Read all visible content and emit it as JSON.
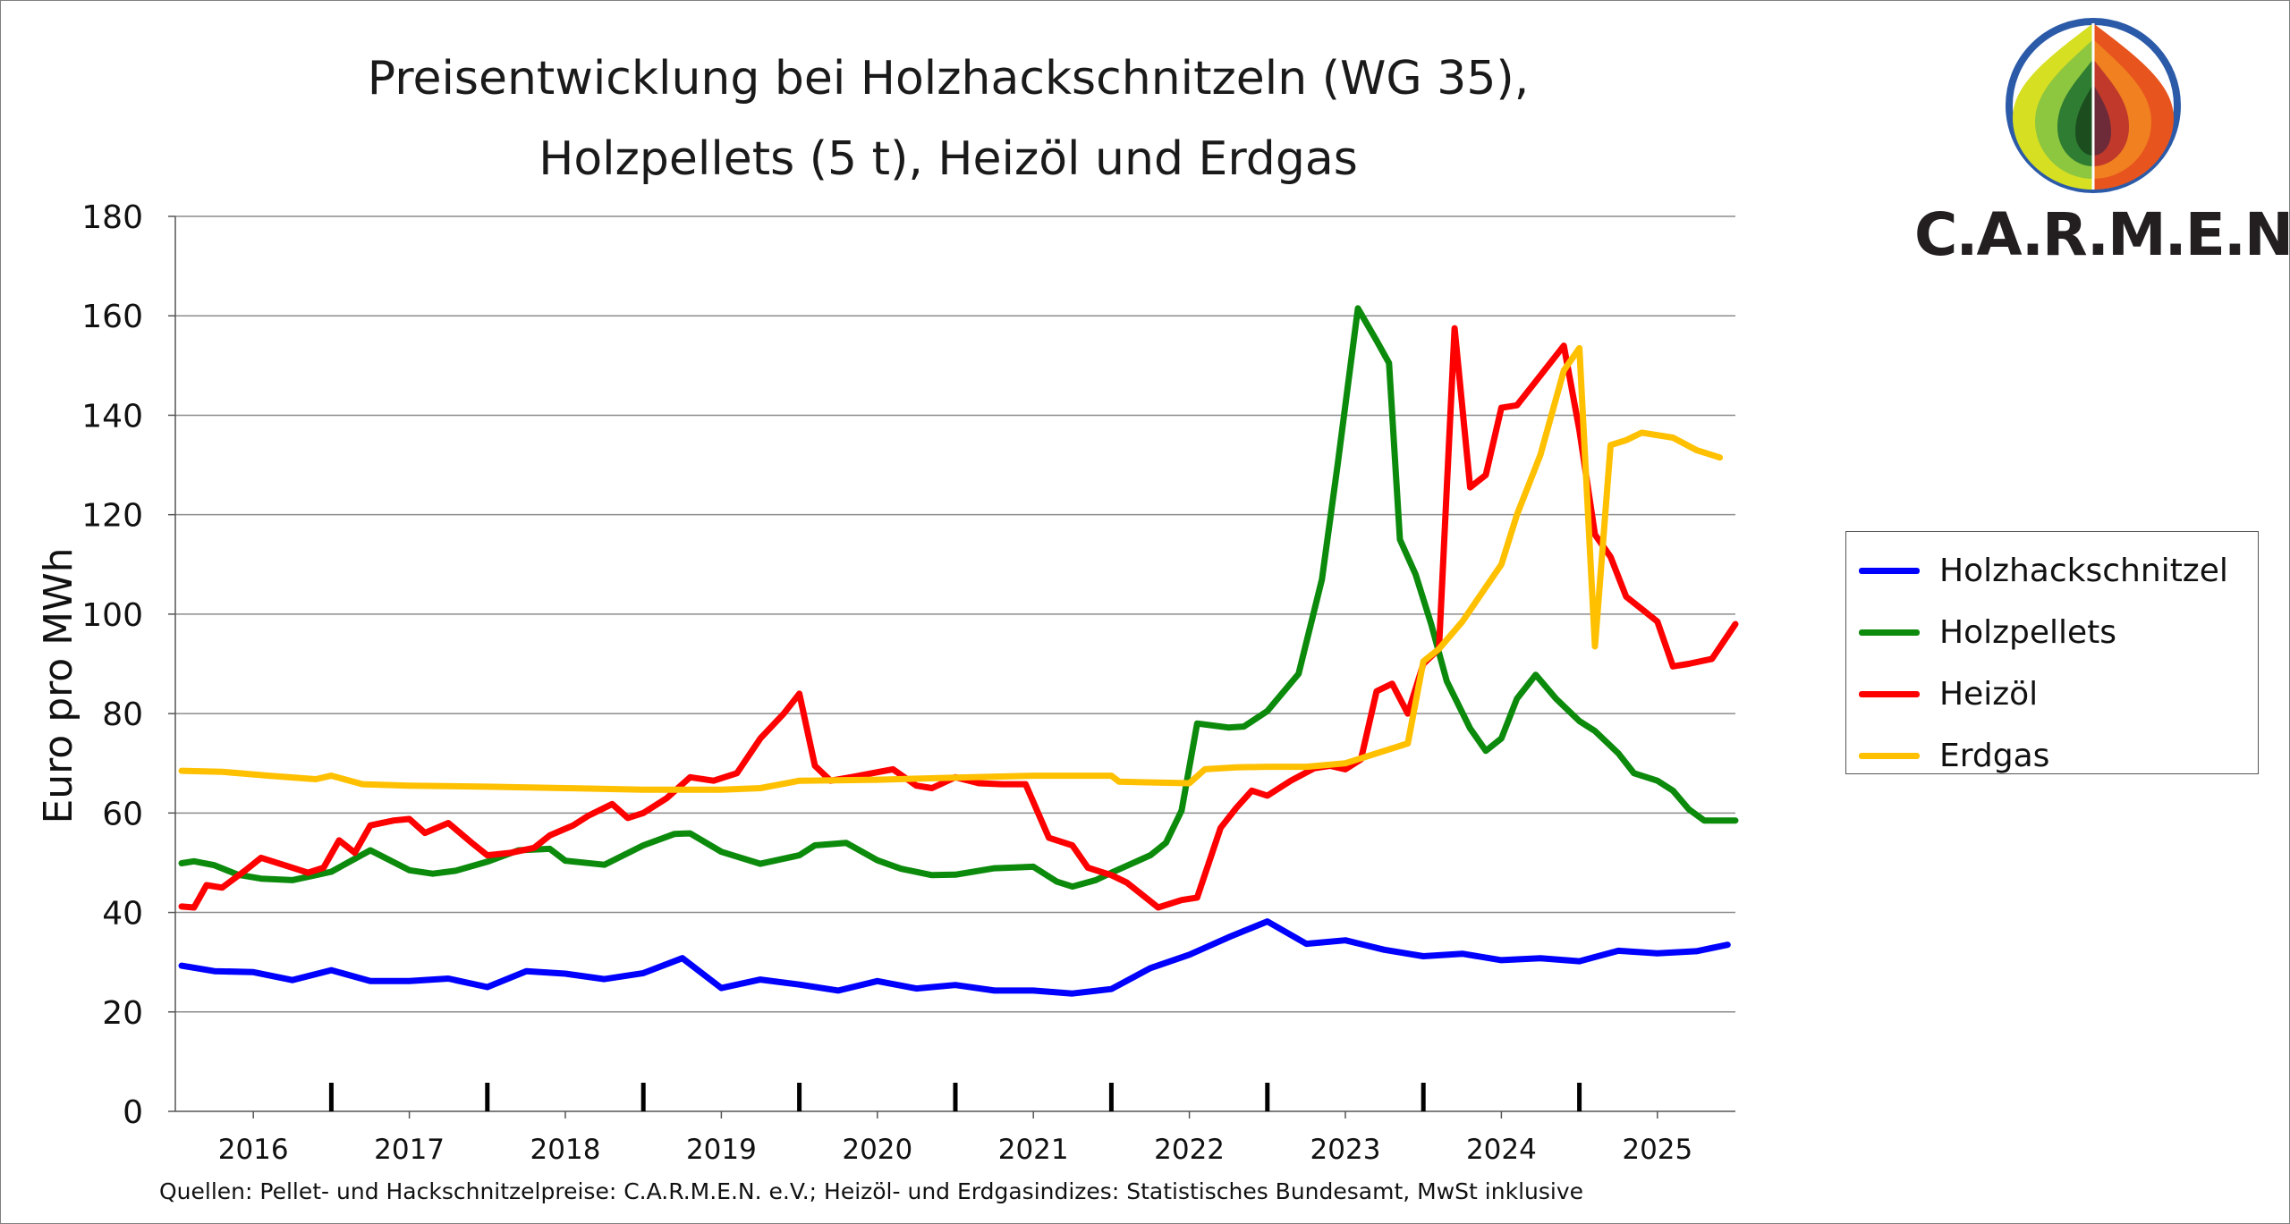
{
  "chart_data": {
    "type": "line",
    "title_line1": "Preisentwicklung bei Holzhackschnitzeln (WG 35),",
    "title_line2": "Holzpellets (5 t), Heizöl und Erdgas",
    "ylabel": "Euro pro MWh",
    "xlabel": "",
    "ylim": [
      0,
      180
    ],
    "yticks": [
      0,
      20,
      40,
      60,
      80,
      100,
      120,
      140,
      160,
      180
    ],
    "xlim": [
      2016.0,
      2026.0
    ],
    "categories": [
      "2016",
      "2017",
      "2018",
      "2019",
      "2020",
      "2021",
      "2022",
      "2023",
      "2024",
      "2025"
    ],
    "year_dividers": [
      2017,
      2018,
      2019,
      2020,
      2021,
      2022,
      2023,
      2024,
      2025
    ],
    "grid": true,
    "legend_position": "right",
    "series": [
      {
        "name": "Holzhackschnitzel",
        "color": "#0000ff",
        "points": [
          [
            2016.04,
            29.3
          ],
          [
            2016.25,
            28.2
          ],
          [
            2016.5,
            28.0
          ],
          [
            2016.75,
            26.4
          ],
          [
            2017.0,
            28.4
          ],
          [
            2017.25,
            26.2
          ],
          [
            2017.5,
            26.2
          ],
          [
            2017.75,
            26.7
          ],
          [
            2018.0,
            25.0
          ],
          [
            2018.25,
            28.2
          ],
          [
            2018.5,
            27.7
          ],
          [
            2018.75,
            26.6
          ],
          [
            2019.0,
            27.8
          ],
          [
            2019.25,
            30.8
          ],
          [
            2019.5,
            24.8
          ],
          [
            2019.75,
            26.5
          ],
          [
            2020.0,
            25.5
          ],
          [
            2020.25,
            24.3
          ],
          [
            2020.5,
            26.2
          ],
          [
            2020.75,
            24.7
          ],
          [
            2021.0,
            25.4
          ],
          [
            2021.25,
            24.3
          ],
          [
            2021.5,
            24.3
          ],
          [
            2021.75,
            23.7
          ],
          [
            2022.0,
            24.6
          ],
          [
            2022.25,
            28.8
          ],
          [
            2022.5,
            31.5
          ],
          [
            2022.75,
            35.0
          ],
          [
            2023.0,
            38.2
          ],
          [
            2023.25,
            33.7
          ],
          [
            2023.5,
            34.4
          ],
          [
            2023.75,
            32.5
          ],
          [
            2024.0,
            31.2
          ],
          [
            2024.25,
            31.7
          ],
          [
            2024.5,
            30.4
          ],
          [
            2024.75,
            30.8
          ],
          [
            2025.0,
            30.2
          ],
          [
            2025.25,
            32.3
          ],
          [
            2025.5,
            31.8
          ],
          [
            2025.75,
            32.2
          ],
          [
            2025.95,
            33.5
          ]
        ]
      },
      {
        "name": "Holzpellets",
        "color": "#0c8a0c",
        "points": [
          [
            2016.04,
            49.9
          ],
          [
            2016.12,
            50.3
          ],
          [
            2016.25,
            49.5
          ],
          [
            2016.4,
            47.6
          ],
          [
            2016.55,
            46.8
          ],
          [
            2016.75,
            46.5
          ],
          [
            2016.9,
            47.5
          ],
          [
            2017.0,
            48.2
          ],
          [
            2017.25,
            52.5
          ],
          [
            2017.5,
            48.5
          ],
          [
            2017.65,
            47.8
          ],
          [
            2017.8,
            48.4
          ],
          [
            2018.0,
            50.2
          ],
          [
            2018.2,
            52.5
          ],
          [
            2018.4,
            52.8
          ],
          [
            2018.5,
            50.4
          ],
          [
            2018.75,
            49.6
          ],
          [
            2019.0,
            53.5
          ],
          [
            2019.2,
            55.8
          ],
          [
            2019.3,
            55.9
          ],
          [
            2019.5,
            52.2
          ],
          [
            2019.75,
            49.8
          ],
          [
            2020.0,
            51.5
          ],
          [
            2020.1,
            53.5
          ],
          [
            2020.3,
            54.0
          ],
          [
            2020.5,
            50.5
          ],
          [
            2020.65,
            48.8
          ],
          [
            2020.85,
            47.5
          ],
          [
            2021.0,
            47.6
          ],
          [
            2021.25,
            48.9
          ],
          [
            2021.5,
            49.2
          ],
          [
            2021.65,
            46.2
          ],
          [
            2021.75,
            45.2
          ],
          [
            2021.9,
            46.5
          ],
          [
            2022.0,
            48.0
          ],
          [
            2022.25,
            51.5
          ],
          [
            2022.35,
            54.0
          ],
          [
            2022.45,
            60.5
          ],
          [
            2022.55,
            78.0
          ],
          [
            2022.75,
            77.2
          ],
          [
            2022.85,
            77.4
          ],
          [
            2023.0,
            80.5
          ],
          [
            2023.2,
            88.0
          ],
          [
            2023.35,
            107.0
          ],
          [
            2023.45,
            130.0
          ],
          [
            2023.58,
            161.5
          ],
          [
            2023.7,
            155.0
          ],
          [
            2023.78,
            150.5
          ],
          [
            2023.85,
            115.0
          ],
          [
            2023.95,
            108.0
          ],
          [
            2024.05,
            98.0
          ],
          [
            2024.15,
            86.5
          ],
          [
            2024.3,
            77.0
          ],
          [
            2024.4,
            72.5
          ],
          [
            2024.5,
            75.0
          ],
          [
            2024.6,
            83.0
          ],
          [
            2024.72,
            87.8
          ],
          [
            2024.85,
            83.0
          ],
          [
            2025.0,
            78.5
          ],
          [
            2025.1,
            76.5
          ],
          [
            2025.25,
            72.0
          ],
          [
            2025.35,
            68.0
          ],
          [
            2025.5,
            66.5
          ],
          [
            2025.6,
            64.5
          ],
          [
            2025.7,
            60.8
          ],
          [
            2025.8,
            58.5
          ],
          [
            2026.0,
            58.5
          ]
        ]
      },
      {
        "name": "Heizöl",
        "color": "#ff0000",
        "points": [
          [
            2016.04,
            41.2
          ],
          [
            2016.12,
            41.0
          ],
          [
            2016.2,
            45.5
          ],
          [
            2016.3,
            45.0
          ],
          [
            2016.45,
            48.5
          ],
          [
            2016.55,
            51.0
          ],
          [
            2016.7,
            49.5
          ],
          [
            2016.85,
            48.0
          ],
          [
            2016.95,
            49.0
          ],
          [
            2017.05,
            54.5
          ],
          [
            2017.15,
            52.0
          ],
          [
            2017.25,
            57.5
          ],
          [
            2017.4,
            58.5
          ],
          [
            2017.5,
            58.8
          ],
          [
            2017.6,
            56.0
          ],
          [
            2017.75,
            58.0
          ],
          [
            2017.9,
            54.0
          ],
          [
            2018.0,
            51.5
          ],
          [
            2018.15,
            52.0
          ],
          [
            2018.3,
            53.0
          ],
          [
            2018.4,
            55.5
          ],
          [
            2018.55,
            57.5
          ],
          [
            2018.65,
            59.5
          ],
          [
            2018.8,
            61.8
          ],
          [
            2018.9,
            59.0
          ],
          [
            2019.0,
            60.0
          ],
          [
            2019.15,
            63.0
          ],
          [
            2019.3,
            67.2
          ],
          [
            2019.45,
            66.5
          ],
          [
            2019.6,
            68.0
          ],
          [
            2019.75,
            75.0
          ],
          [
            2019.9,
            80.0
          ],
          [
            2020.0,
            84.0
          ],
          [
            2020.1,
            69.5
          ],
          [
            2020.2,
            66.5
          ],
          [
            2020.35,
            67.3
          ],
          [
            2020.5,
            68.2
          ],
          [
            2020.6,
            68.8
          ],
          [
            2020.75,
            65.5
          ],
          [
            2020.85,
            65.0
          ],
          [
            2021.0,
            67.2
          ],
          [
            2021.15,
            66.0
          ],
          [
            2021.3,
            65.8
          ],
          [
            2021.45,
            65.8
          ],
          [
            2021.6,
            55.0
          ],
          [
            2021.75,
            53.5
          ],
          [
            2021.85,
            49.0
          ],
          [
            2022.0,
            47.5
          ],
          [
            2022.1,
            46.0
          ],
          [
            2022.2,
            43.5
          ],
          [
            2022.3,
            41.0
          ],
          [
            2022.45,
            42.5
          ],
          [
            2022.55,
            43.0
          ],
          [
            2022.7,
            57.0
          ],
          [
            2022.8,
            61.0
          ],
          [
            2022.9,
            64.5
          ],
          [
            2023.0,
            63.5
          ],
          [
            2023.15,
            66.5
          ],
          [
            2023.3,
            69.0
          ],
          [
            2023.4,
            69.5
          ],
          [
            2023.5,
            68.8
          ],
          [
            2023.6,
            70.8
          ],
          [
            2023.7,
            84.5
          ],
          [
            2023.8,
            86.0
          ],
          [
            2023.9,
            80.0
          ],
          [
            2024.0,
            90.0
          ],
          [
            2024.1,
            93.0
          ],
          [
            2024.2,
            157.5
          ],
          [
            2024.3,
            125.5
          ],
          [
            2024.4,
            128.0
          ],
          [
            2024.5,
            141.5
          ],
          [
            2024.6,
            142.0
          ],
          [
            2024.75,
            148.0
          ],
          [
            2024.9,
            154.0
          ],
          [
            2025.0,
            137.0
          ],
          [
            2025.1,
            116.0
          ],
          [
            2025.2,
            111.5
          ],
          [
            2025.3,
            103.5
          ],
          [
            2025.4,
            101.0
          ],
          [
            2025.5,
            98.5
          ],
          [
            2025.6,
            89.5
          ],
          [
            2025.7,
            90.0
          ],
          [
            2025.85,
            91.0
          ],
          [
            2026.0,
            98.0
          ]
        ]
      },
      {
        "name": "Erdgas",
        "color": "#ffc000",
        "points": [
          [
            2016.04,
            68.5
          ],
          [
            2016.3,
            68.3
          ],
          [
            2016.6,
            67.5
          ],
          [
            2016.9,
            66.8
          ],
          [
            2017.0,
            67.5
          ],
          [
            2017.2,
            65.8
          ],
          [
            2017.5,
            65.5
          ],
          [
            2018.0,
            65.3
          ],
          [
            2018.5,
            65.0
          ],
          [
            2019.0,
            64.7
          ],
          [
            2019.5,
            64.7
          ],
          [
            2019.75,
            65.0
          ],
          [
            2020.0,
            66.5
          ],
          [
            2020.5,
            66.7
          ],
          [
            2021.0,
            67.1
          ],
          [
            2021.5,
            67.5
          ],
          [
            2022.0,
            67.5
          ],
          [
            2022.05,
            66.3
          ],
          [
            2022.5,
            66.0
          ],
          [
            2022.6,
            68.8
          ],
          [
            2022.8,
            69.2
          ],
          [
            2023.0,
            69.3
          ],
          [
            2023.25,
            69.3
          ],
          [
            2023.5,
            70.0
          ],
          [
            2023.75,
            72.5
          ],
          [
            2023.9,
            74.0
          ],
          [
            2024.0,
            90.5
          ],
          [
            2024.1,
            93.0
          ],
          [
            2024.25,
            98.5
          ],
          [
            2024.5,
            110.0
          ],
          [
            2024.6,
            120.0
          ],
          [
            2024.75,
            132.0
          ],
          [
            2024.9,
            149.0
          ],
          [
            2025.0,
            153.5
          ],
          [
            2025.1,
            93.5
          ],
          [
            2025.2,
            134.0
          ],
          [
            2025.3,
            135.0
          ],
          [
            2025.4,
            136.5
          ],
          [
            2025.6,
            135.5
          ],
          [
            2025.75,
            133.0
          ],
          [
            2025.9,
            131.5
          ]
        ]
      }
    ]
  },
  "legend": {
    "items": [
      "Holzhackschnitzel",
      "Holzpellets",
      "Heizöl",
      "Erdgas"
    ]
  },
  "logo": {
    "text": "C.A.R.M.E.N."
  },
  "source": "Quellen: Pellet- und Hackschnitzelpreise: C.A.R.M.E.N. e.V.; Heizöl- und Erdgasindizes: Statistisches Bundesamt, MwSt inklusive"
}
